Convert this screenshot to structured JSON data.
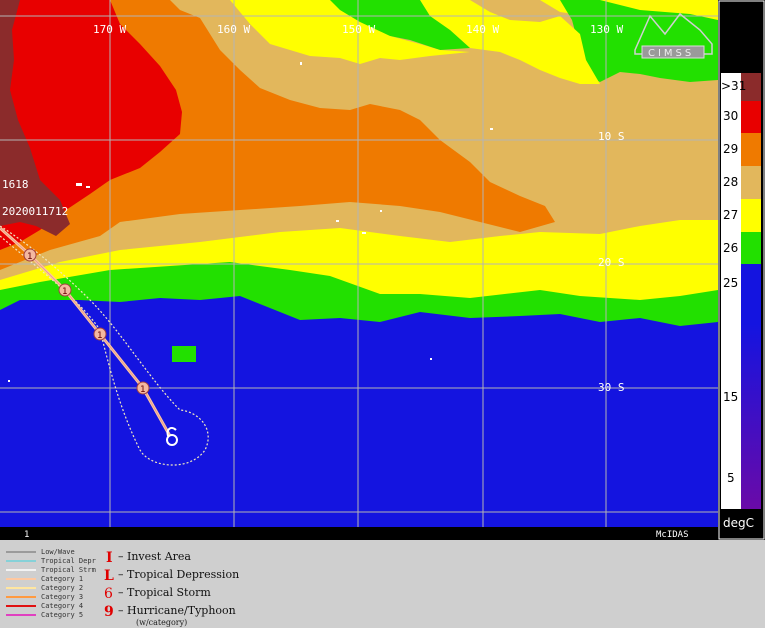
{
  "map": {
    "lon_labels": [
      "170 W",
      "160 W",
      "150 W",
      "140 W",
      "130 W"
    ],
    "lat_labels": [
      "10 S",
      "20 S",
      "30 S"
    ],
    "storm_id": "1618",
    "storm_date": "2020011712",
    "bottom_left": "1",
    "bottom_right": "McIDAS",
    "logo": "CIMSS",
    "track_points": [
      {
        "label": "1"
      },
      {
        "label": "1"
      },
      {
        "label": "1"
      },
      {
        "label": "1"
      }
    ]
  },
  "scale": {
    "ticks": [
      ">31",
      "30",
      "29",
      "28",
      "27",
      "26",
      "25",
      "15",
      "5"
    ],
    "unit": "degC",
    "colors": [
      "#8b2b2b",
      "#e80000",
      "#ef7a00",
      "#e2b75c",
      "#ffff00",
      "#22e000",
      "#1414e0",
      "#5a0aa8"
    ]
  },
  "legend": {
    "lines": [
      {
        "label": "Low/Wave",
        "color": "#8a8a8a"
      },
      {
        "label": "Tropical Depr",
        "color": "#6ed2dc"
      },
      {
        "label": "Tropical Strm",
        "color": "#ffffff"
      },
      {
        "label": "Category 1",
        "color": "#ffc8a0"
      },
      {
        "label": "Category 2",
        "color": "#ffe6a0"
      },
      {
        "label": "Category 3",
        "color": "#ff9a40"
      },
      {
        "label": "Category 4",
        "color": "#e01010"
      },
      {
        "label": "Category 5",
        "color": "#e040c0"
      }
    ],
    "symbols": [
      {
        "glyph": "I",
        "label": "– Invest Area"
      },
      {
        "glyph": "L",
        "label": "– Tropical Depression"
      },
      {
        "glyph": "6",
        "label": "– Tropical Storm"
      },
      {
        "glyph": "9",
        "label": "– Hurricane/Typhoon"
      }
    ],
    "note": "(w/category)"
  }
}
